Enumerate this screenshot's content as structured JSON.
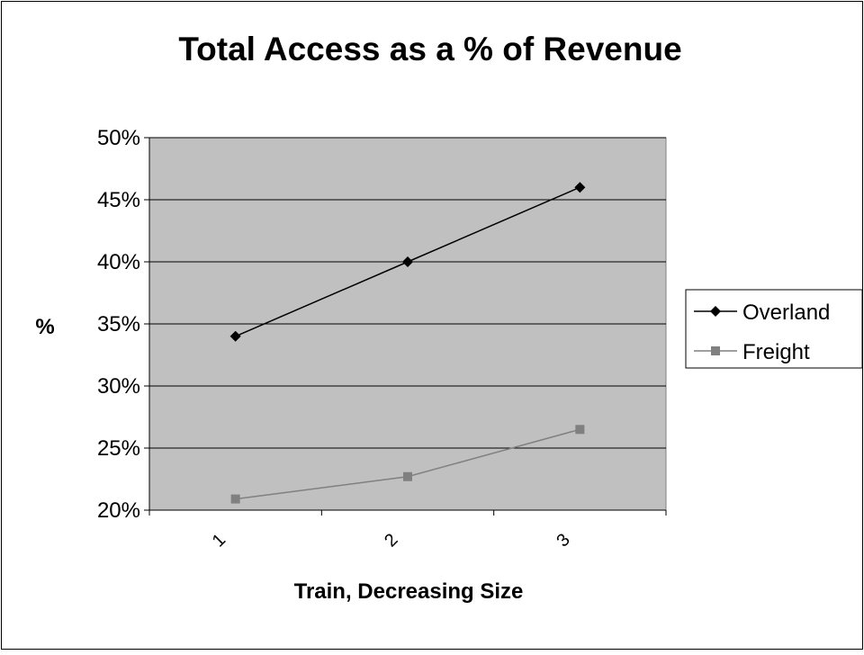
{
  "chart_data": {
    "type": "line",
    "title": "Total Access as a % of Revenue",
    "xlabel": "Train, Decreasing Size",
    "ylabel": "%",
    "categories": [
      "1",
      "2",
      "3"
    ],
    "ylim": [
      20,
      50
    ],
    "y_ticks": [
      20,
      25,
      30,
      35,
      40,
      45,
      50
    ],
    "y_tick_labels": [
      "20%",
      "25%",
      "30%",
      "35%",
      "40%",
      "45%",
      "50%"
    ],
    "grid": true,
    "legend_position": "right",
    "series": [
      {
        "name": "Overland",
        "values": [
          34,
          40,
          46
        ],
        "color": "#000000",
        "marker": "diamond"
      },
      {
        "name": "Freight",
        "values": [
          20.9,
          22.7,
          26.5
        ],
        "color": "#808080",
        "marker": "square"
      }
    ],
    "colors": {
      "plot_background": "#c0c0c0",
      "gridline": "#000000",
      "chart_border": "#000000"
    }
  }
}
